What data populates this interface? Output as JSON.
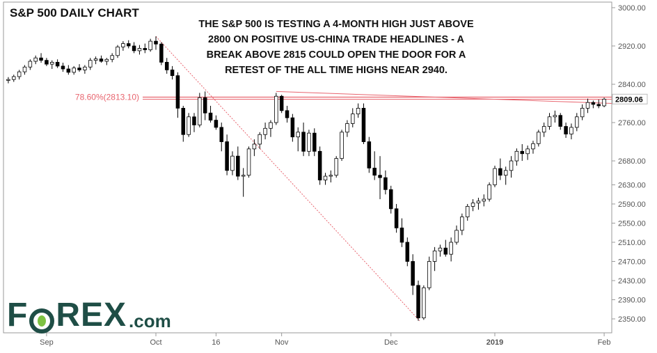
{
  "title": "S&P 500 DAILY CHART",
  "annotation_lines": [
    "THE S&P 500 IS TESTING A 4-MONTH HIGH JUST ABOVE",
    "2800 ON POSITIVE US-CHINA TRADE HEADLINES - A",
    "BREAK ABOVE 2815 COULD OPEN THE DOOR FOR A",
    "RETEST OF THE ALL TIME HIGHS NEAR 2940."
  ],
  "logo": {
    "main": "F",
    "after_o": "REX",
    "suffix": ".com"
  },
  "colors": {
    "fib": "#e8646e",
    "up_fill": "#ffffff",
    "down_fill": "#000000",
    "candle_border": "#000000",
    "axis": "#555555"
  },
  "chart_data": {
    "type": "candlestick",
    "title": "S&P 500 DAILY CHART",
    "ylim": [
      2335,
      3010
    ],
    "y_ticks": [
      3000,
      2920,
      2840,
      2760,
      2680,
      2630,
      2590,
      2550,
      2510,
      2470,
      2430,
      2390,
      2350
    ],
    "last_price_label": "2809.06",
    "fib_label": "78.60%(2813.10)",
    "fib_level": 2813.1,
    "x_labels": [
      {
        "label": "Sep",
        "index": 7
      },
      {
        "label": "Oct",
        "index": 27
      },
      {
        "label": "16",
        "index": 38
      },
      {
        "label": "Nov",
        "index": 50
      },
      {
        "label": "Dec",
        "index": 70
      },
      {
        "label": "2019",
        "index": 89
      },
      {
        "label": "Feb",
        "index": 109
      }
    ],
    "series": [
      {
        "ohlc": [
          [
            2848,
            2855,
            2842,
            2850
          ],
          [
            2850,
            2860,
            2845,
            2856
          ],
          [
            2856,
            2870,
            2850,
            2866
          ],
          [
            2866,
            2880,
            2860,
            2876
          ],
          [
            2876,
            2892,
            2870,
            2888
          ],
          [
            2888,
            2900,
            2882,
            2895
          ],
          [
            2895,
            2905,
            2885,
            2890
          ],
          [
            2890,
            2895,
            2878,
            2882
          ],
          [
            2882,
            2890,
            2872,
            2886
          ],
          [
            2886,
            2892,
            2874,
            2878
          ],
          [
            2878,
            2885,
            2866,
            2872
          ],
          [
            2872,
            2880,
            2860,
            2865
          ],
          [
            2865,
            2878,
            2860,
            2874
          ],
          [
            2874,
            2882,
            2866,
            2870
          ],
          [
            2870,
            2880,
            2862,
            2876
          ],
          [
            2876,
            2895,
            2870,
            2890
          ],
          [
            2890,
            2898,
            2882,
            2893
          ],
          [
            2893,
            2900,
            2885,
            2888
          ],
          [
            2888,
            2895,
            2880,
            2892
          ],
          [
            2892,
            2905,
            2886,
            2900
          ],
          [
            2900,
            2922,
            2895,
            2918
          ],
          [
            2918,
            2930,
            2910,
            2925
          ],
          [
            2925,
            2932,
            2915,
            2920
          ],
          [
            2920,
            2928,
            2905,
            2910
          ],
          [
            2910,
            2922,
            2902,
            2915
          ],
          [
            2915,
            2925,
            2905,
            2912
          ],
          [
            2912,
            2935,
            2908,
            2930
          ],
          [
            2930,
            2940,
            2912,
            2924
          ],
          [
            2924,
            2928,
            2880,
            2886
          ],
          [
            2886,
            2895,
            2862,
            2870
          ],
          [
            2870,
            2878,
            2850,
            2858
          ],
          [
            2858,
            2865,
            2770,
            2790
          ],
          [
            2790,
            2795,
            2720,
            2735
          ],
          [
            2735,
            2780,
            2730,
            2772
          ],
          [
            2772,
            2780,
            2740,
            2755
          ],
          [
            2755,
            2822,
            2750,
            2812
          ],
          [
            2812,
            2825,
            2765,
            2780
          ],
          [
            2780,
            2795,
            2760,
            2765
          ],
          [
            2765,
            2775,
            2745,
            2750
          ],
          [
            2750,
            2760,
            2700,
            2720
          ],
          [
            2720,
            2735,
            2650,
            2660
          ],
          [
            2660,
            2700,
            2650,
            2690
          ],
          [
            2690,
            2710,
            2640,
            2648
          ],
          [
            2648,
            2665,
            2605,
            2650
          ],
          [
            2650,
            2710,
            2645,
            2705
          ],
          [
            2705,
            2725,
            2690,
            2715
          ],
          [
            2715,
            2740,
            2705,
            2735
          ],
          [
            2735,
            2760,
            2725,
            2748
          ],
          [
            2748,
            2765,
            2730,
            2760
          ],
          [
            2760,
            2822,
            2755,
            2815
          ],
          [
            2815,
            2818,
            2780,
            2785
          ],
          [
            2785,
            2795,
            2760,
            2770
          ],
          [
            2770,
            2778,
            2720,
            2730
          ],
          [
            2730,
            2750,
            2700,
            2740
          ],
          [
            2740,
            2760,
            2690,
            2700
          ],
          [
            2700,
            2745,
            2690,
            2738
          ],
          [
            2738,
            2748,
            2690,
            2700
          ],
          [
            2700,
            2710,
            2630,
            2640
          ],
          [
            2640,
            2655,
            2630,
            2648
          ],
          [
            2648,
            2660,
            2635,
            2650
          ],
          [
            2650,
            2690,
            2645,
            2685
          ],
          [
            2685,
            2745,
            2680,
            2740
          ],
          [
            2740,
            2765,
            2730,
            2758
          ],
          [
            2758,
            2790,
            2750,
            2778
          ],
          [
            2778,
            2800,
            2770,
            2790
          ],
          [
            2790,
            2800,
            2715,
            2720
          ],
          [
            2720,
            2730,
            2655,
            2665
          ],
          [
            2665,
            2700,
            2640,
            2650
          ],
          [
            2650,
            2690,
            2600,
            2645
          ],
          [
            2645,
            2660,
            2610,
            2620
          ],
          [
            2620,
            2628,
            2570,
            2580
          ],
          [
            2580,
            2590,
            2530,
            2540
          ],
          [
            2540,
            2560,
            2500,
            2510
          ],
          [
            2510,
            2520,
            2460,
            2470
          ],
          [
            2470,
            2485,
            2400,
            2420
          ],
          [
            2420,
            2430,
            2346,
            2352
          ],
          [
            2352,
            2420,
            2348,
            2415
          ],
          [
            2415,
            2480,
            2410,
            2470
          ],
          [
            2470,
            2500,
            2450,
            2492
          ],
          [
            2492,
            2505,
            2480,
            2498
          ],
          [
            2498,
            2515,
            2480,
            2485
          ],
          [
            2485,
            2520,
            2470,
            2510
          ],
          [
            2510,
            2545,
            2505,
            2535
          ],
          [
            2535,
            2570,
            2525,
            2563
          ],
          [
            2563,
            2590,
            2555,
            2585
          ],
          [
            2585,
            2600,
            2575,
            2592
          ],
          [
            2592,
            2603,
            2578,
            2596
          ],
          [
            2596,
            2610,
            2585,
            2600
          ],
          [
            2600,
            2635,
            2595,
            2630
          ],
          [
            2630,
            2670,
            2625,
            2664
          ],
          [
            2664,
            2685,
            2640,
            2650
          ],
          [
            2650,
            2668,
            2630,
            2660
          ],
          [
            2660,
            2690,
            2645,
            2680
          ],
          [
            2680,
            2706,
            2670,
            2700
          ],
          [
            2700,
            2715,
            2680,
            2695
          ],
          [
            2695,
            2712,
            2682,
            2705
          ],
          [
            2705,
            2722,
            2695,
            2716
          ],
          [
            2716,
            2745,
            2710,
            2740
          ],
          [
            2740,
            2760,
            2730,
            2752
          ],
          [
            2752,
            2780,
            2745,
            2772
          ],
          [
            2772,
            2785,
            2760,
            2775
          ],
          [
            2775,
            2780,
            2745,
            2752
          ],
          [
            2752,
            2760,
            2728,
            2736
          ],
          [
            2736,
            2758,
            2725,
            2750
          ],
          [
            2750,
            2780,
            2742,
            2772
          ],
          [
            2772,
            2798,
            2765,
            2790
          ],
          [
            2790,
            2810,
            2780,
            2802
          ],
          [
            2802,
            2806,
            2790,
            2798
          ],
          [
            2798,
            2808,
            2790,
            2795
          ],
          [
            2795,
            2812,
            2792,
            2809
          ]
        ]
      }
    ]
  }
}
